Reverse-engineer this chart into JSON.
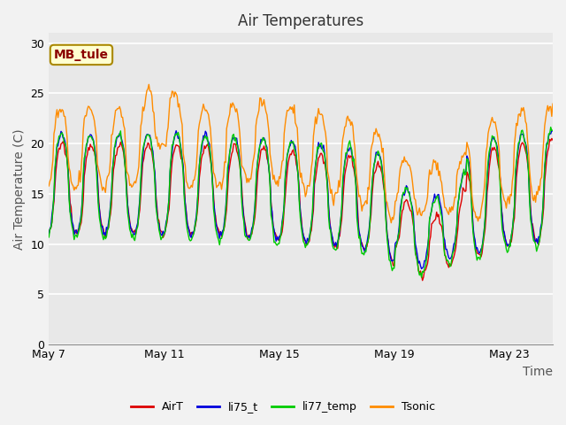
{
  "title": "Air Temperatures",
  "xlabel": "Time",
  "ylabel": "Air Temperature (C)",
  "ylim": [
    0,
    31
  ],
  "yticks": [
    0,
    5,
    10,
    15,
    20,
    25,
    30
  ],
  "xlim_days": [
    0,
    17.5
  ],
  "xtick_positions_days": [
    0,
    4,
    8,
    12,
    16
  ],
  "xtick_labels": [
    "May 7",
    "May 11",
    "May 15",
    "May 19",
    "May 23"
  ],
  "annotation_text": "MB_tule",
  "legend_labels": [
    "AirT",
    "li75_t",
    "li77_temp",
    "Tsonic"
  ],
  "line_colors": [
    "#dd0000",
    "#0000dd",
    "#00cc00",
    "#ff8c00"
  ],
  "background_color": "#e8e8e8",
  "outer_background": "#f2f2f2",
  "grid_color": "#ffffff",
  "title_fontsize": 12,
  "label_fontsize": 10,
  "tick_fontsize": 9,
  "n_points": 500
}
